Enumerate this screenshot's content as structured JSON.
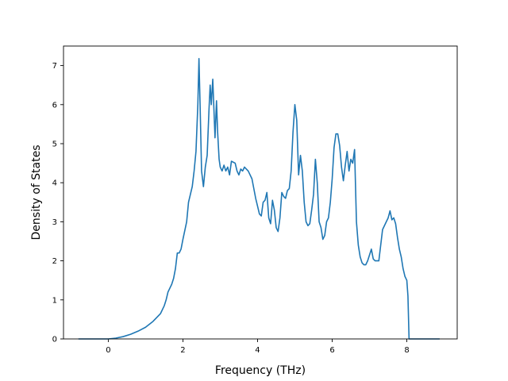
{
  "chart_data": {
    "type": "line",
    "title": "",
    "xlabel": "Frequency (THz)",
    "ylabel": "Density of States",
    "xlim": [
      -1.2,
      9.35
    ],
    "ylim": [
      0,
      7.5
    ],
    "grid": false,
    "legend": "none",
    "x_ticks": [
      0,
      2,
      4,
      6,
      8
    ],
    "y_ticks": [
      0,
      1,
      2,
      3,
      4,
      5,
      6,
      7
    ],
    "series": [
      {
        "color": "#1f77b4",
        "points": [
          [
            -0.8,
            0
          ],
          [
            -0.4,
            0
          ],
          [
            0.0,
            0
          ],
          [
            0.2,
            0.02
          ],
          [
            0.4,
            0.06
          ],
          [
            0.6,
            0.12
          ],
          [
            0.8,
            0.2
          ],
          [
            1.0,
            0.3
          ],
          [
            1.2,
            0.45
          ],
          [
            1.4,
            0.65
          ],
          [
            1.5,
            0.85
          ],
          [
            1.55,
            1.0
          ],
          [
            1.6,
            1.2
          ],
          [
            1.7,
            1.4
          ],
          [
            1.75,
            1.55
          ],
          [
            1.8,
            1.8
          ],
          [
            1.85,
            2.2
          ],
          [
            1.9,
            2.2
          ],
          [
            1.95,
            2.3
          ],
          [
            2.0,
            2.55
          ],
          [
            2.1,
            3.0
          ],
          [
            2.15,
            3.5
          ],
          [
            2.2,
            3.7
          ],
          [
            2.25,
            3.9
          ],
          [
            2.3,
            4.3
          ],
          [
            2.35,
            4.8
          ],
          [
            2.4,
            6.0
          ],
          [
            2.43,
            7.18
          ],
          [
            2.46,
            6.0
          ],
          [
            2.5,
            4.3
          ],
          [
            2.55,
            3.9
          ],
          [
            2.6,
            4.4
          ],
          [
            2.65,
            4.7
          ],
          [
            2.7,
            5.9
          ],
          [
            2.73,
            6.5
          ],
          [
            2.76,
            6.0
          ],
          [
            2.8,
            6.65
          ],
          [
            2.83,
            5.9
          ],
          [
            2.86,
            5.15
          ],
          [
            2.9,
            6.1
          ],
          [
            2.93,
            5.3
          ],
          [
            2.97,
            4.6
          ],
          [
            3.0,
            4.4
          ],
          [
            3.05,
            4.3
          ],
          [
            3.1,
            4.45
          ],
          [
            3.15,
            4.3
          ],
          [
            3.2,
            4.4
          ],
          [
            3.25,
            4.2
          ],
          [
            3.3,
            4.55
          ],
          [
            3.4,
            4.5
          ],
          [
            3.45,
            4.3
          ],
          [
            3.5,
            4.2
          ],
          [
            3.55,
            4.35
          ],
          [
            3.6,
            4.3
          ],
          [
            3.65,
            4.4
          ],
          [
            3.75,
            4.3
          ],
          [
            3.85,
            4.1
          ],
          [
            3.95,
            3.6
          ],
          [
            4.0,
            3.4
          ],
          [
            4.05,
            3.2
          ],
          [
            4.1,
            3.15
          ],
          [
            4.15,
            3.5
          ],
          [
            4.2,
            3.55
          ],
          [
            4.25,
            3.75
          ],
          [
            4.3,
            3.1
          ],
          [
            4.35,
            2.95
          ],
          [
            4.4,
            3.55
          ],
          [
            4.45,
            3.3
          ],
          [
            4.5,
            2.85
          ],
          [
            4.55,
            2.75
          ],
          [
            4.6,
            3.1
          ],
          [
            4.65,
            3.75
          ],
          [
            4.7,
            3.65
          ],
          [
            4.75,
            3.6
          ],
          [
            4.8,
            3.8
          ],
          [
            4.85,
            3.85
          ],
          [
            4.9,
            4.3
          ],
          [
            4.95,
            5.3
          ],
          [
            5.0,
            6.0
          ],
          [
            5.05,
            5.6
          ],
          [
            5.1,
            4.2
          ],
          [
            5.15,
            4.7
          ],
          [
            5.2,
            4.3
          ],
          [
            5.25,
            3.5
          ],
          [
            5.3,
            3.0
          ],
          [
            5.35,
            2.9
          ],
          [
            5.4,
            2.95
          ],
          [
            5.45,
            3.3
          ],
          [
            5.5,
            3.7
          ],
          [
            5.55,
            4.6
          ],
          [
            5.6,
            4.0
          ],
          [
            5.65,
            3.0
          ],
          [
            5.7,
            2.85
          ],
          [
            5.75,
            2.55
          ],
          [
            5.8,
            2.65
          ],
          [
            5.85,
            3.0
          ],
          [
            5.9,
            3.1
          ],
          [
            5.95,
            3.5
          ],
          [
            6.0,
            4.1
          ],
          [
            6.05,
            4.9
          ],
          [
            6.1,
            5.25
          ],
          [
            6.15,
            5.25
          ],
          [
            6.2,
            4.95
          ],
          [
            6.25,
            4.4
          ],
          [
            6.3,
            4.05
          ],
          [
            6.35,
            4.45
          ],
          [
            6.4,
            4.8
          ],
          [
            6.45,
            4.3
          ],
          [
            6.5,
            4.6
          ],
          [
            6.55,
            4.5
          ],
          [
            6.6,
            4.85
          ],
          [
            6.65,
            3.0
          ],
          [
            6.7,
            2.4
          ],
          [
            6.75,
            2.1
          ],
          [
            6.8,
            1.95
          ],
          [
            6.85,
            1.9
          ],
          [
            6.9,
            1.9
          ],
          [
            6.95,
            2.0
          ],
          [
            7.0,
            2.15
          ],
          [
            7.05,
            2.3
          ],
          [
            7.1,
            2.05
          ],
          [
            7.15,
            2.0
          ],
          [
            7.2,
            2.0
          ],
          [
            7.25,
            2.0
          ],
          [
            7.3,
            2.4
          ],
          [
            7.35,
            2.8
          ],
          [
            7.45,
            3.0
          ],
          [
            7.5,
            3.1
          ],
          [
            7.55,
            3.28
          ],
          [
            7.6,
            3.05
          ],
          [
            7.65,
            3.1
          ],
          [
            7.7,
            2.95
          ],
          [
            7.75,
            2.6
          ],
          [
            7.8,
            2.3
          ],
          [
            7.85,
            2.1
          ],
          [
            7.9,
            1.8
          ],
          [
            7.95,
            1.6
          ],
          [
            8.0,
            1.5
          ],
          [
            8.03,
            1.1
          ],
          [
            8.06,
            0
          ],
          [
            8.2,
            0
          ],
          [
            8.5,
            0
          ],
          [
            8.88,
            0
          ]
        ]
      }
    ]
  }
}
